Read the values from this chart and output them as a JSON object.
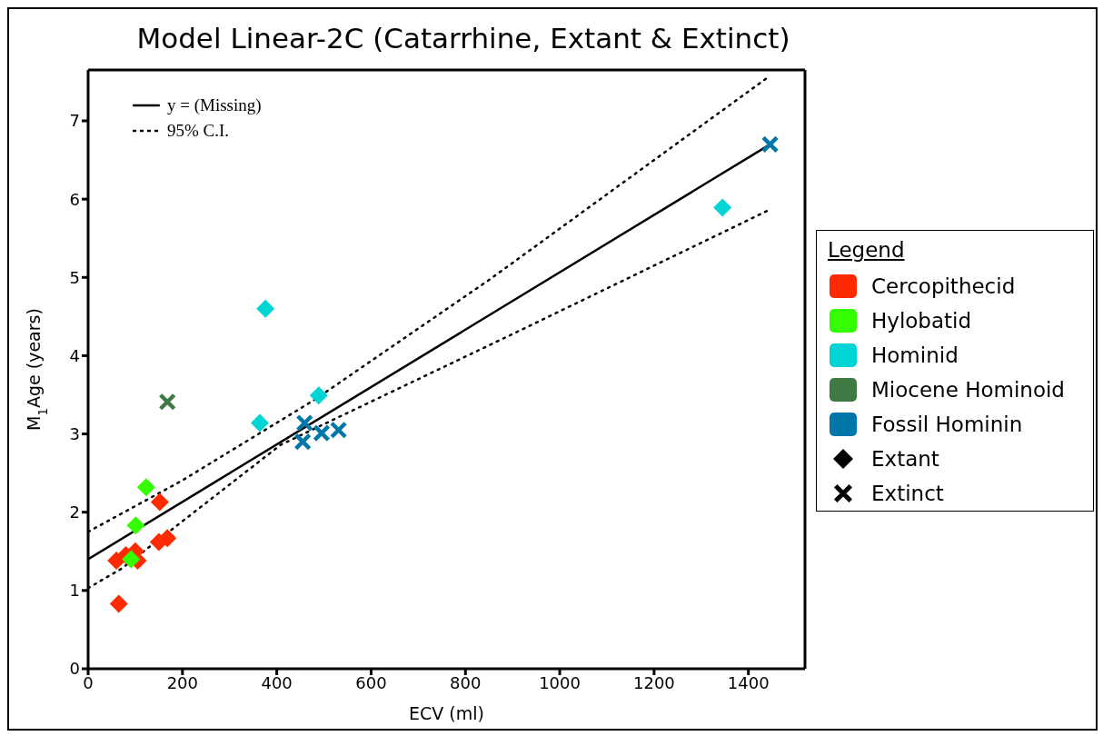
{
  "chart_data": {
    "type": "scatter",
    "title": "Model Linear-2C (Catarrhine, Extant & Extinct)",
    "xlabel": "ECV (ml)",
    "ylabel": "M$_{1}$Age (years)",
    "legend_title": "Legend",
    "legend": "right",
    "xlim": [
      0,
      1520
    ],
    "ylim": [
      0,
      7.65
    ],
    "xticks": [
      0,
      200,
      400,
      600,
      800,
      1000,
      1200,
      1400
    ],
    "yticks": [
      0,
      1,
      2,
      3,
      4,
      5,
      6,
      7
    ],
    "series": [
      {
        "name": "y = (Missing)",
        "type": "line",
        "color": "#000000",
        "line_style": "solid",
        "marker": "none",
        "x": [
          0,
          1446
        ],
        "values": [
          1.4,
          6.7
        ]
      },
      {
        "name": "95% C.I.",
        "type": "line",
        "color": "#000000",
        "line_style": "dotted",
        "marker": "none",
        "x": [
          0,
          198,
          481,
          853,
          1440
        ],
        "values": [
          1.75,
          2.4,
          3.44,
          4.98,
          7.55
        ]
      },
      {
        "type": "line",
        "color": "#000000",
        "line_style": "dotted",
        "marker": "none",
        "x": [
          0,
          71,
          408,
          891,
          1440
        ],
        "values": [
          1.03,
          1.28,
          2.86,
          4.25,
          5.85
        ]
      },
      {
        "name": "Cercopithecid",
        "color": "#ff2a00",
        "marker": "diamond",
        "x": [
          65,
          152,
          60,
          80,
          100,
          105,
          150,
          168
        ],
        "values": [
          0.83,
          2.13,
          1.38,
          1.45,
          1.5,
          1.38,
          1.62,
          1.67
        ]
      },
      {
        "name": "Hylobatid",
        "color": "#33ff00",
        "marker": "diamond",
        "x": [
          123,
          101,
          91
        ],
        "values": [
          2.32,
          1.83,
          1.4
        ]
      },
      {
        "name": "Hominid",
        "color": "#00d4d4",
        "marker": "diamond",
        "x": [
          376,
          364,
          489,
          1345
        ],
        "values": [
          4.6,
          3.14,
          3.49,
          5.89
        ]
      },
      {
        "name": "Miocene Hominoid",
        "color": "#3f7a45",
        "marker": "cross",
        "x": [
          168
        ],
        "values": [
          3.41
        ]
      },
      {
        "name": "Fossil Hominin",
        "color": "#0077a8",
        "marker": "cross",
        "x": [
          459,
          455,
          495,
          531,
          1446
        ],
        "values": [
          3.14,
          2.9,
          3.01,
          3.05,
          6.7
        ]
      },
      {
        "name": "Extant",
        "color": "#000000",
        "marker": "diamond"
      },
      {
        "name": "Extinct",
        "color": "#000000",
        "marker": "cross"
      }
    ]
  }
}
